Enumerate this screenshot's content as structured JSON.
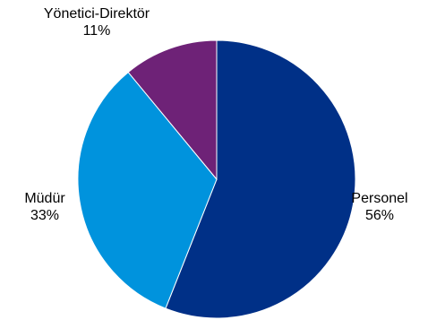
{
  "chart_data": {
    "type": "pie",
    "title": "",
    "start_angle_deg": 0,
    "direction": "clockwise",
    "slices": [
      {
        "label": "Personel",
        "value": 56,
        "value_label": "56%",
        "color": "#003087"
      },
      {
        "label": "Müdür",
        "value": 33,
        "value_label": "33%",
        "color": "#0093DD"
      },
      {
        "label": "Yönetici-Direktör",
        "value": 11,
        "value_label": "11%",
        "color": "#6E2277"
      }
    ],
    "legend": "none"
  }
}
